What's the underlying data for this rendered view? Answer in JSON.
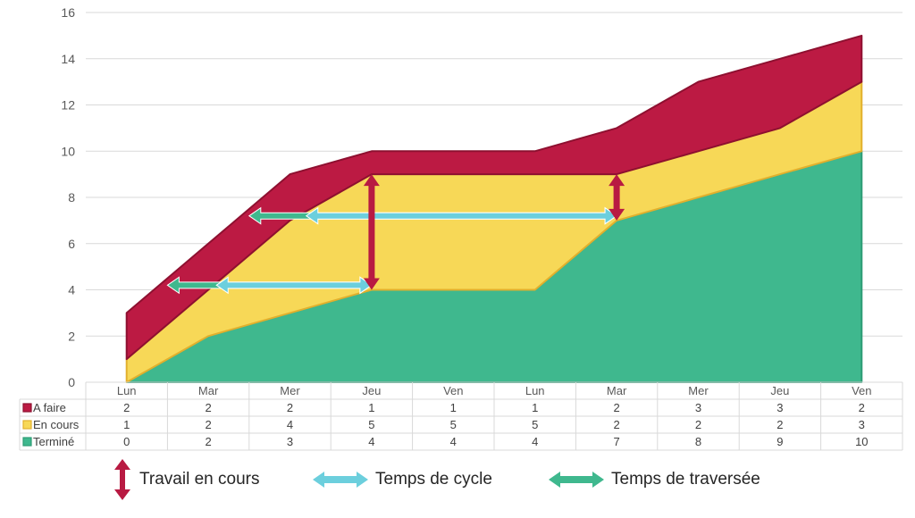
{
  "chart_data": {
    "type": "area",
    "stacked": true,
    "categories": [
      "Lun",
      "Mar",
      "Mer",
      "Jeu",
      "Ven",
      "Lun",
      "Mar",
      "Mer",
      "Jeu",
      "Ven"
    ],
    "ylim": [
      0,
      16
    ],
    "yticks": [
      0,
      2,
      4,
      6,
      8,
      10,
      12,
      14,
      16
    ],
    "grid": true,
    "data_table": true,
    "series": [
      {
        "name": "Terminé",
        "values": [
          0,
          2,
          3,
          4,
          4,
          4,
          7,
          8,
          9,
          10
        ],
        "color": "#3FB88E",
        "edge": "#2E9C75"
      },
      {
        "name": "En cours",
        "values": [
          1,
          2,
          4,
          5,
          5,
          5,
          2,
          2,
          2,
          3
        ],
        "color": "#F7D857",
        "edge": "#E2B02D"
      },
      {
        "name": "A faire",
        "values": [
          2,
          2,
          2,
          1,
          1,
          1,
          2,
          3,
          3,
          2
        ],
        "color": "#BC1A43",
        "edge": "#8E1030"
      }
    ],
    "table_row_order": [
      "A faire",
      "En cours",
      "Terminé"
    ],
    "annotations": [
      {
        "type": "wip",
        "color": "#B81A42",
        "x": 3,
        "y_from": 4,
        "y_to": 9
      },
      {
        "type": "wip",
        "color": "#B81A42",
        "x": 6,
        "y_from": 7,
        "y_to": 9
      },
      {
        "type": "cycle",
        "color": "#6CCFDD",
        "y": 4.2,
        "x_from": 1.1,
        "x_to": 3
      },
      {
        "type": "cycle",
        "color": "#6CCFDD",
        "y": 7.2,
        "x_from": 2.2,
        "x_to": 6
      },
      {
        "type": "lead",
        "color": "#3FB88E",
        "y": 4.2,
        "x_from": 0.5,
        "x_to": 3
      },
      {
        "type": "lead",
        "color": "#3FB88E",
        "y": 7.2,
        "x_from": 1.5,
        "x_to": 6
      }
    ]
  },
  "legend": [
    {
      "label": "Travail en cours",
      "icon": "vertical-double-arrow",
      "color": "#B81A42"
    },
    {
      "label": "Temps de cycle",
      "icon": "horizontal-double-arrow",
      "color": "#6CCFDD"
    },
    {
      "label": "Temps de traversée",
      "icon": "horizontal-double-arrow",
      "color": "#3FB88E"
    }
  ]
}
